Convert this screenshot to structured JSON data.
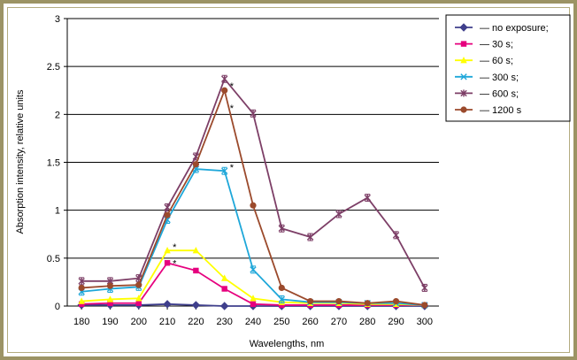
{
  "chart_data": {
    "type": "line",
    "xlabel": "Wavelengths, nm",
    "ylabel": "Absorption intensity, relative units",
    "x": [
      180,
      190,
      200,
      210,
      220,
      230,
      240,
      250,
      260,
      270,
      280,
      290,
      300
    ],
    "ylim": [
      0,
      3
    ],
    "yticks": [
      0,
      0.5,
      1,
      1.5,
      2,
      2.5,
      3
    ],
    "ytick_labels": [
      "0",
      "0.5",
      "1",
      "1.5",
      "2",
      "2.5",
      "3"
    ],
    "grid": "horizontal",
    "legend_position": "right",
    "series": [
      {
        "name": "— no exposure;",
        "color": "#3f3f8c",
        "marker": "diamond",
        "values": [
          0.01,
          0.01,
          0.01,
          0.02,
          0.01,
          0.0,
          0.0,
          0.0,
          0.0,
          0.0,
          0.0,
          0.0,
          0.0
        ]
      },
      {
        "name": "— 30 s;",
        "color": "#e6007e",
        "marker": "square",
        "values": [
          0.02,
          0.03,
          0.03,
          0.45,
          0.37,
          0.18,
          0.02,
          0.01,
          0.01,
          0.01,
          0.01,
          0.01,
          0.01
        ]
      },
      {
        "name": "— 60 s;",
        "color": "#ffff00",
        "marker": "triangle",
        "values": [
          0.05,
          0.07,
          0.08,
          0.58,
          0.58,
          0.29,
          0.08,
          0.04,
          0.03,
          0.03,
          0.02,
          0.02,
          0.01
        ]
      },
      {
        "name": "— 300 s;",
        "color": "#1ea7d9",
        "marker": "x",
        "values": [
          0.15,
          0.18,
          0.2,
          0.9,
          1.43,
          1.41,
          0.38,
          0.07,
          0.04,
          0.04,
          0.03,
          0.03,
          0.01
        ]
      },
      {
        "name": "— 600 s;",
        "color": "#7d3f67",
        "marker": "star",
        "values": [
          0.26,
          0.26,
          0.29,
          1.03,
          1.56,
          2.37,
          2.01,
          0.81,
          0.72,
          0.96,
          1.13,
          0.74,
          0.19
        ]
      },
      {
        "name": "— 1200 s",
        "color": "#9b4a2c",
        "marker": "circle",
        "values": [
          0.19,
          0.21,
          0.22,
          0.95,
          1.48,
          2.25,
          1.05,
          0.19,
          0.05,
          0.05,
          0.03,
          0.05,
          0.01
        ]
      }
    ],
    "error_bar_series": [
      "— 300 s;",
      "— 600 s;"
    ],
    "annotations": [
      {
        "text": "*",
        "x": 210,
        "y": 0.62
      },
      {
        "text": "*",
        "x": 210,
        "y": 0.45
      },
      {
        "text": "*",
        "x": 230,
        "y": 1.45
      },
      {
        "text": "*",
        "x": 230,
        "y": 2.3
      },
      {
        "text": "*",
        "x": 230,
        "y": 2.07
      }
    ]
  }
}
